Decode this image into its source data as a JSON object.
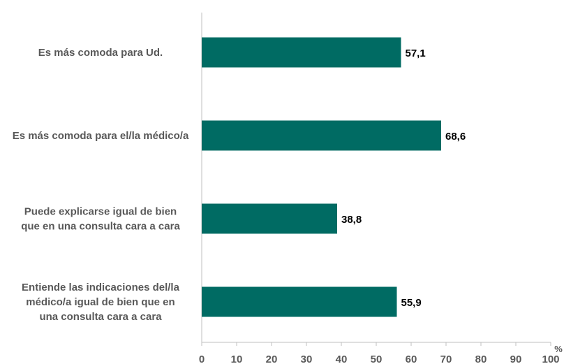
{
  "chart_data": {
    "type": "bar",
    "orientation": "horizontal",
    "categories": [
      [
        "Es más comoda para Ud."
      ],
      [
        "Es más comoda para el/la médico/a"
      ],
      [
        "Puede explicarse igual de bien",
        "que en una consulta cara a cara"
      ],
      [
        "Entiende las indicaciones del/la",
        "médico/a igual de bien que en",
        "una consulta cara a cara"
      ]
    ],
    "values": [
      57.1,
      68.6,
      38.8,
      55.9
    ],
    "value_labels": [
      "57,1",
      "68,6",
      "38,8",
      "55,9"
    ],
    "xlim": [
      0,
      100
    ],
    "xticks": [
      0,
      10,
      20,
      30,
      40,
      50,
      60,
      70,
      80,
      90,
      100
    ],
    "unit": "%",
    "bar_color": "#006b63",
    "title_color": "#c8862a",
    "grid": false
  }
}
